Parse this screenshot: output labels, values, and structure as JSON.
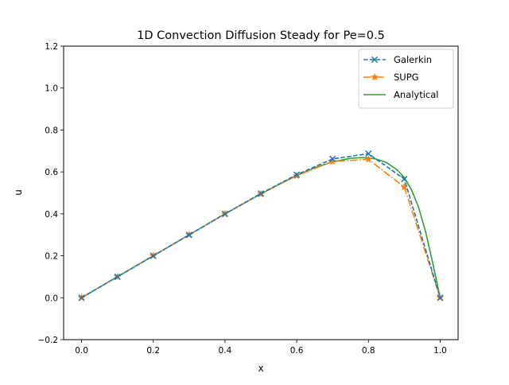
{
  "chart_data": {
    "type": "line",
    "title": "1D Convection Diffusion Steady for Pe=0.5",
    "xlabel": "x",
    "ylabel": "u",
    "xlim": [
      -0.05,
      1.05
    ],
    "ylim": [
      -0.2,
      1.2
    ],
    "xticks": [
      0.0,
      0.2,
      0.4,
      0.6,
      0.8,
      1.0
    ],
    "xtick_labels": [
      "0.0",
      "0.2",
      "0.4",
      "0.6",
      "0.8",
      "1.0"
    ],
    "yticks": [
      -0.2,
      0.0,
      0.2,
      0.4,
      0.6,
      0.8,
      1.0,
      1.2
    ],
    "ytick_labels": [
      "−0.2",
      "0.0",
      "0.2",
      "0.4",
      "0.6",
      "0.8",
      "1.0",
      "1.2"
    ],
    "grid": false,
    "legend_position": "top-right",
    "series": [
      {
        "name": "Galerkin",
        "color": "#1f77b4",
        "line_style": "dashed",
        "marker": "x",
        "x": [
          0.0,
          0.1,
          0.2,
          0.3,
          0.4,
          0.5,
          0.6,
          0.7,
          0.8,
          0.9,
          1.0
        ],
        "y": [
          0.0,
          0.1,
          0.2,
          0.3,
          0.4,
          0.497,
          0.587,
          0.662,
          0.687,
          0.566,
          0.0
        ]
      },
      {
        "name": "SUPG",
        "color": "#ff7f0e",
        "line_style": "dashdot",
        "marker": "star",
        "x": [
          0.0,
          0.1,
          0.2,
          0.3,
          0.4,
          0.5,
          0.6,
          0.7,
          0.8,
          0.9,
          1.0
        ],
        "y": [
          0.0,
          0.1,
          0.2,
          0.3,
          0.4,
          0.495,
          0.582,
          0.65,
          0.66,
          0.528,
          0.0
        ]
      },
      {
        "name": "Analytical",
        "color": "#2ca02c",
        "line_style": "solid",
        "marker": "none",
        "x": [
          0.0,
          0.1,
          0.2,
          0.3,
          0.4,
          0.5,
          0.55,
          0.6,
          0.65,
          0.7,
          0.75,
          0.78,
          0.8,
          0.82,
          0.85,
          0.88,
          0.9,
          0.92,
          0.94,
          0.96,
          0.98,
          1.0
        ],
        "y": [
          0.0,
          0.1,
          0.2,
          0.3,
          0.4,
          0.495,
          0.54,
          0.583,
          0.62,
          0.648,
          0.665,
          0.668,
          0.667,
          0.662,
          0.645,
          0.61,
          0.573,
          0.515,
          0.43,
          0.31,
          0.16,
          0.0
        ]
      }
    ]
  }
}
